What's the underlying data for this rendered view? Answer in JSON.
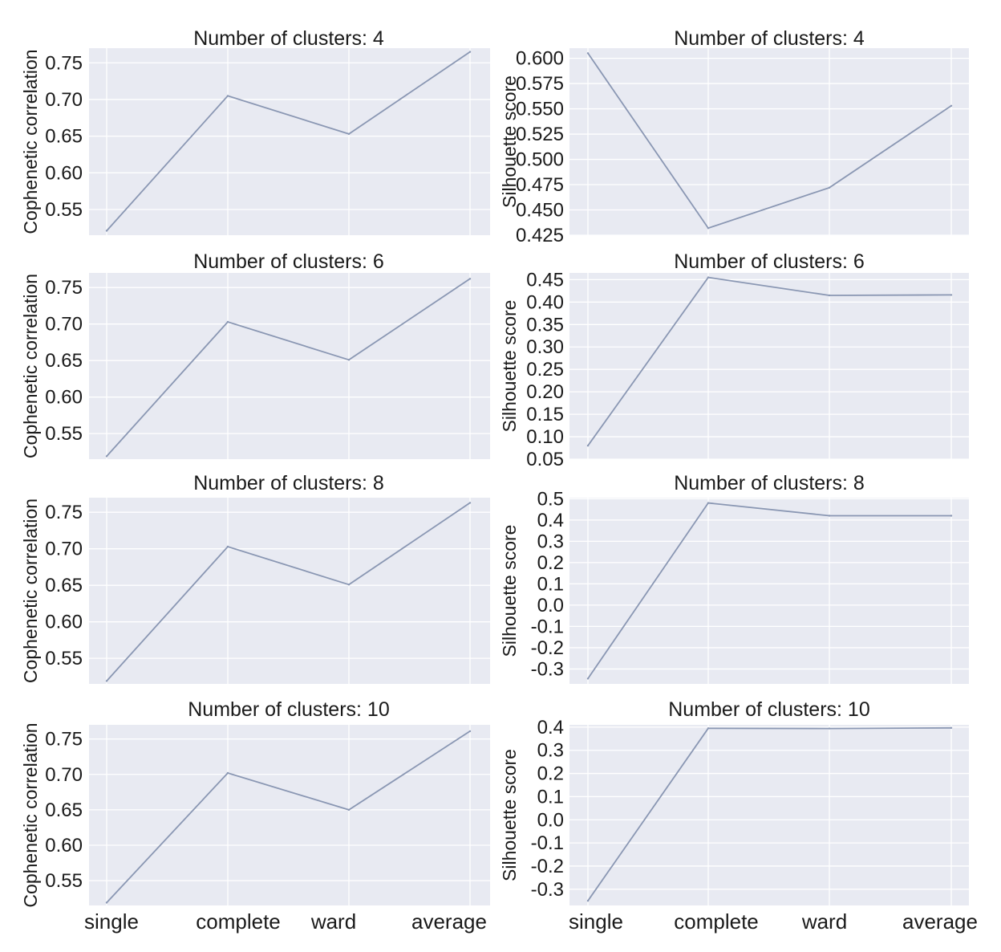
{
  "chart_data": [
    {
      "type": "line",
      "title": "Number of clusters: 4",
      "ylabel": "Cophenetic correlation",
      "categories": [
        "single",
        "complete",
        "ward",
        "average"
      ],
      "values": [
        0.521,
        0.705,
        0.653,
        0.765
      ],
      "ylim": [
        0.515,
        0.77
      ],
      "yticks": [
        0.55,
        0.6,
        0.65,
        0.7,
        0.75
      ],
      "ytick_labels": [
        "0.55",
        "0.60",
        "0.65",
        "0.70",
        "0.75"
      ],
      "grid": true
    },
    {
      "type": "line",
      "title": "Number of clusters: 4",
      "ylabel": "Silhouette score",
      "categories": [
        "single",
        "complete",
        "ward",
        "average"
      ],
      "values": [
        0.605,
        0.432,
        0.472,
        0.553
      ],
      "ylim": [
        0.425,
        0.61
      ],
      "yticks": [
        0.425,
        0.45,
        0.475,
        0.5,
        0.525,
        0.55,
        0.575,
        0.6
      ],
      "ytick_labels": [
        "0.425",
        "0.450",
        "0.475",
        "0.500",
        "0.525",
        "0.550",
        "0.575",
        "0.600"
      ],
      "grid": true
    },
    {
      "type": "line",
      "title": "Number of clusters: 6",
      "ylabel": "Cophenetic correlation",
      "categories": [
        "single",
        "complete",
        "ward",
        "average"
      ],
      "values": [
        0.519,
        0.703,
        0.651,
        0.762
      ],
      "ylim": [
        0.515,
        0.77
      ],
      "yticks": [
        0.55,
        0.6,
        0.65,
        0.7,
        0.75
      ],
      "ytick_labels": [
        "0.55",
        "0.60",
        "0.65",
        "0.70",
        "0.75"
      ],
      "grid": true
    },
    {
      "type": "line",
      "title": "Number of clusters: 6",
      "ylabel": "Silhouette score",
      "categories": [
        "single",
        "complete",
        "ward",
        "average"
      ],
      "values": [
        0.08,
        0.455,
        0.415,
        0.416
      ],
      "ylim": [
        0.05,
        0.465
      ],
      "yticks": [
        0.05,
        0.1,
        0.15,
        0.2,
        0.25,
        0.3,
        0.35,
        0.4,
        0.45
      ],
      "ytick_labels": [
        "0.05",
        "0.10",
        "0.15",
        "0.20",
        "0.25",
        "0.30",
        "0.35",
        "0.40",
        "0.45"
      ],
      "grid": true
    },
    {
      "type": "line",
      "title": "Number of clusters: 8",
      "ylabel": "Cophenetic correlation",
      "categories": [
        "single",
        "complete",
        "ward",
        "average"
      ],
      "values": [
        0.519,
        0.703,
        0.651,
        0.763
      ],
      "ylim": [
        0.515,
        0.77
      ],
      "yticks": [
        0.55,
        0.6,
        0.65,
        0.7,
        0.75
      ],
      "ytick_labels": [
        "0.55",
        "0.60",
        "0.65",
        "0.70",
        "0.75"
      ],
      "grid": true
    },
    {
      "type": "line",
      "title": "Number of clusters: 8",
      "ylabel": "Silhouette score",
      "categories": [
        "single",
        "complete",
        "ward",
        "average"
      ],
      "values": [
        -0.345,
        0.48,
        0.42,
        0.42
      ],
      "ylim": [
        -0.37,
        0.505
      ],
      "yticks": [
        -0.3,
        -0.2,
        -0.1,
        0.0,
        0.1,
        0.2,
        0.3,
        0.4,
        0.5
      ],
      "ytick_labels": [
        "-0.3",
        "-0.2",
        "-0.1",
        "0.0",
        "0.1",
        "0.2",
        "0.3",
        "0.4",
        "0.5"
      ],
      "grid": true
    },
    {
      "type": "line",
      "title": "Number of clusters: 10",
      "ylabel": "Cophenetic correlation",
      "categories": [
        "single",
        "complete",
        "ward",
        "average"
      ],
      "values": [
        0.519,
        0.702,
        0.65,
        0.761
      ],
      "ylim": [
        0.515,
        0.77
      ],
      "yticks": [
        0.55,
        0.6,
        0.65,
        0.7,
        0.75
      ],
      "ytick_labels": [
        "0.55",
        "0.60",
        "0.65",
        "0.70",
        "0.75"
      ],
      "grid": true
    },
    {
      "type": "line",
      "title": "Number of clusters: 10",
      "ylabel": "Silhouette score",
      "categories": [
        "single",
        "complete",
        "ward",
        "average"
      ],
      "values": [
        -0.35,
        0.395,
        0.394,
        0.397
      ],
      "ylim": [
        -0.37,
        0.41
      ],
      "yticks": [
        -0.3,
        -0.2,
        -0.1,
        0.0,
        0.1,
        0.2,
        0.3,
        0.4
      ],
      "ytick_labels": [
        "-0.3",
        "-0.2",
        "-0.1",
        "0.0",
        "0.1",
        "0.2",
        "0.3",
        "0.4"
      ],
      "grid": true
    }
  ]
}
